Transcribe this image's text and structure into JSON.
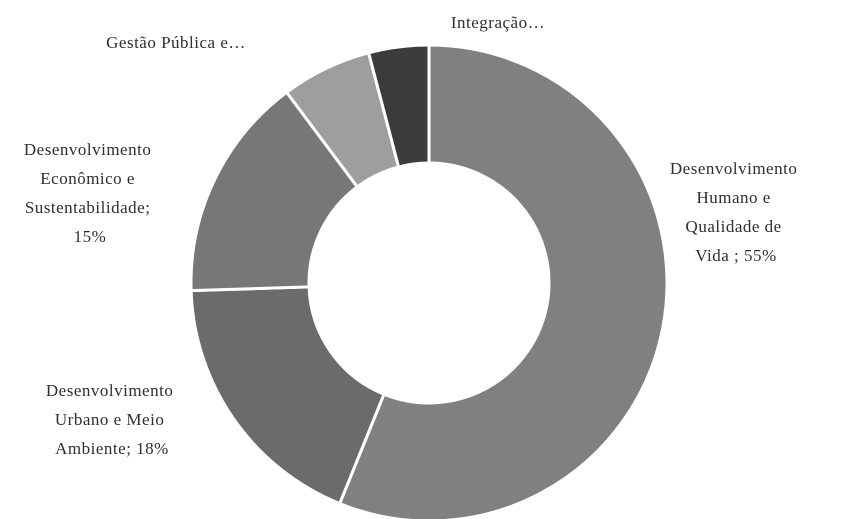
{
  "chart_data": {
    "type": "pie",
    "variant": "donut",
    "title": "",
    "slices": [
      {
        "name": "Desenvolvimento Humano e Qualidade de Vida",
        "value": 55,
        "label_lines": [
          "Desenvolvimento",
          "Humano e",
          "Qualidade de",
          "Vida ; 55%"
        ],
        "color": "#808080"
      },
      {
        "name": "Desenvolvimento Urbano e Meio Ambiente",
        "value": 18,
        "label_lines": [
          "Desenvolvimento",
          "Urbano e Meio",
          "Ambiente; 18%"
        ],
        "color": "#6b6b6b"
      },
      {
        "name": "Desenvolvimento Econômico e Sustentabilidade",
        "value": 15,
        "label_lines": [
          "Desenvolvimento",
          "Econômico e",
          "Sustentabilidade;",
          "15%"
        ],
        "color": "#777777"
      },
      {
        "name": "Gestão Pública e...",
        "value": 6,
        "label_lines": [
          "Gestão Pública e…"
        ],
        "color": "#9e9e9e"
      },
      {
        "name": "Integração...",
        "value": 4,
        "label_lines": [
          "Integração…"
        ],
        "color": "#3c3c3c"
      }
    ]
  }
}
